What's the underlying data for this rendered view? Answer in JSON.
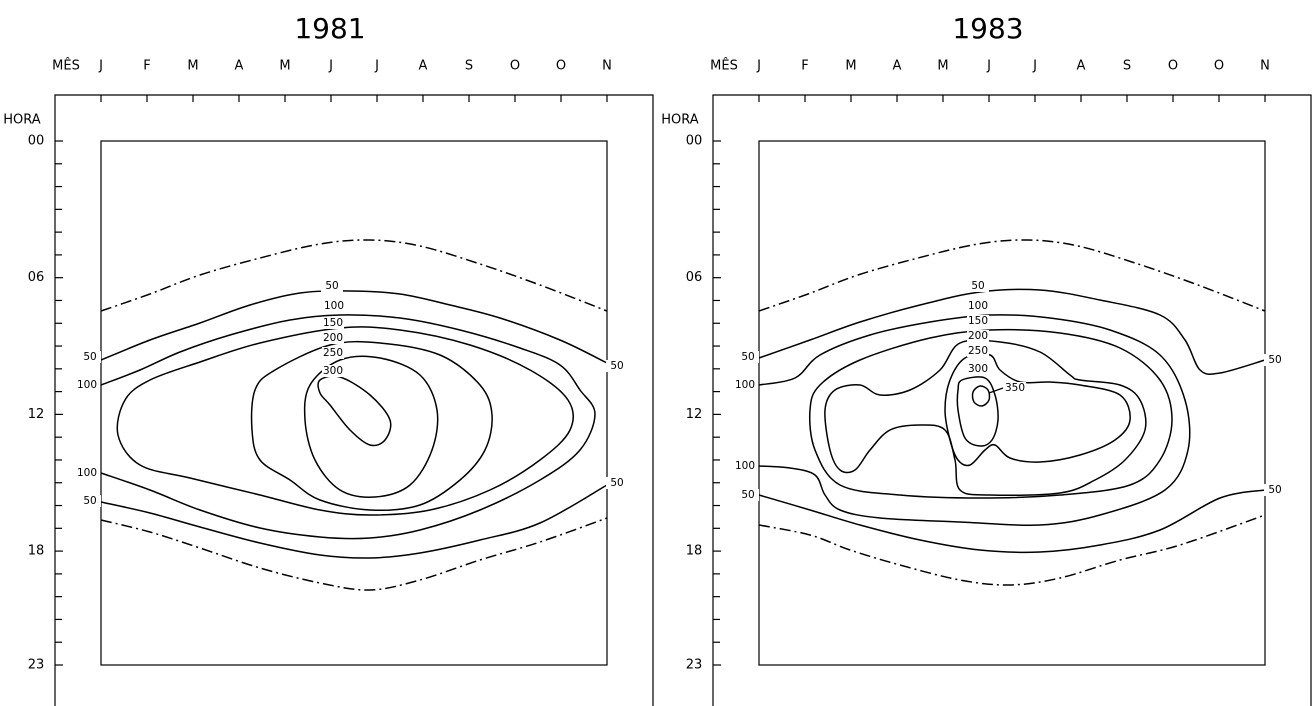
{
  "chart_data": [
    {
      "type": "contour",
      "title": "1981",
      "x_label": "MÊS",
      "y_label": "HORA",
      "categories": [
        "J",
        "F",
        "M",
        "A",
        "M",
        "J",
        "J",
        "A",
        "S",
        "O",
        "O",
        "N"
      ],
      "ylim": [
        0,
        23
      ],
      "yticks": [
        {
          "value": 0,
          "label": "00"
        },
        {
          "value": 6,
          "label": "06"
        },
        {
          "value": 12,
          "label": "12"
        },
        {
          "value": 18,
          "label": "18"
        },
        23
      ],
      "yticks_minor": [
        1,
        2,
        3,
        4,
        5,
        7,
        8,
        9,
        10,
        11,
        13,
        14,
        15,
        16,
        17,
        19,
        20,
        21,
        22
      ],
      "levels": [
        50,
        100,
        150,
        200,
        250,
        300
      ]
    },
    {
      "type": "contour",
      "title": "1983",
      "x_label": "MÊS",
      "y_label": "HORA",
      "categories": [
        "J",
        "F",
        "M",
        "A",
        "M",
        "J",
        "J",
        "A",
        "S",
        "O",
        "O",
        "N"
      ],
      "ylim": [
        0,
        23
      ],
      "yticks": [
        {
          "value": 0,
          "label": "00"
        },
        {
          "value": 6,
          "label": "06"
        },
        {
          "value": 12,
          "label": "12"
        },
        {
          "value": 18,
          "label": "18"
        },
        23
      ],
      "yticks_minor": [
        1,
        2,
        3,
        4,
        5,
        7,
        8,
        9,
        10,
        11,
        13,
        14,
        15,
        16,
        17,
        19,
        20,
        21,
        22
      ],
      "levels": [
        50,
        100,
        150,
        200,
        250,
        300,
        350
      ]
    }
  ]
}
